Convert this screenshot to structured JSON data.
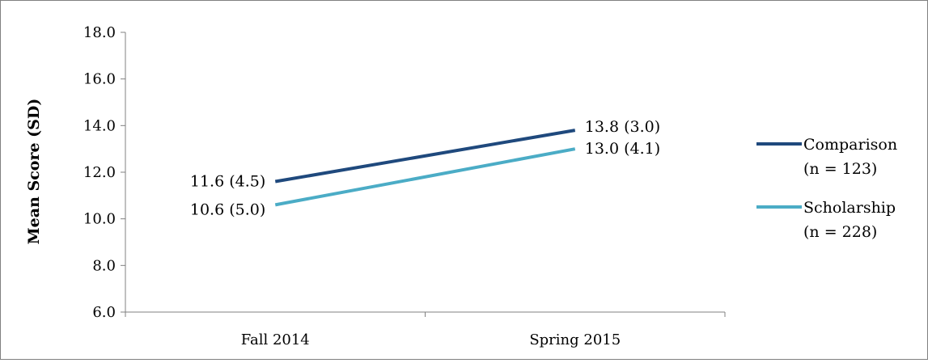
{
  "chart_data": {
    "type": "line",
    "title": "",
    "xlabel": "",
    "ylabel": "Mean Score (SD)",
    "categories": [
      "Fall 2014",
      "Spring 2015"
    ],
    "ylim": [
      6.0,
      18.0
    ],
    "ytick_step": 2.0,
    "ytick_labels": [
      "6.0",
      "8.0",
      "10.0",
      "12.0",
      "14.0",
      "16.0",
      "18.0"
    ],
    "grid": false,
    "legend_position": "right",
    "series": [
      {
        "name": "Comparison",
        "legend_sub": "(n = 123)",
        "color": "#1F497D",
        "values": [
          11.6,
          13.8
        ],
        "labels": [
          "11.6 (4.5)",
          "13.8 (3.0)"
        ]
      },
      {
        "name": "Scholarship",
        "legend_sub": "(n = 228)",
        "color": "#4BACC6",
        "values": [
          10.6,
          13.0
        ],
        "labels": [
          "10.6 (5.0)",
          "13.0 (4.1)"
        ]
      }
    ]
  }
}
